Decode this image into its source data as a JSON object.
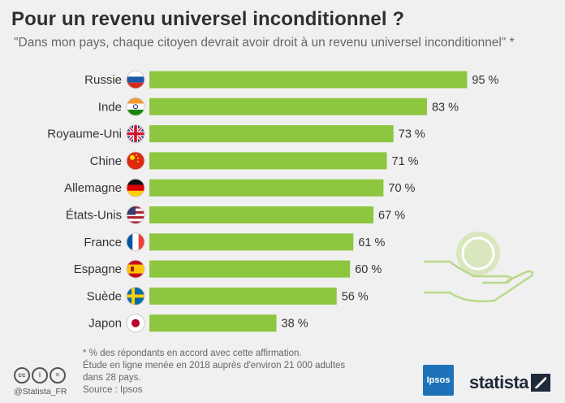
{
  "header": {
    "title": "Pour un revenu universel inconditionnel ?",
    "subtitle": "\"Dans mon pays, chaque citoyen devrait avoir droit à un revenu universel inconditionnel\" *"
  },
  "chart_data": {
    "type": "bar",
    "orientation": "horizontal",
    "categories": [
      "Russie",
      "Inde",
      "Royaume-Uni",
      "Chine",
      "Allemagne",
      "États-Unis",
      "France",
      "Espagne",
      "Suède",
      "Japon"
    ],
    "values": [
      95,
      83,
      73,
      71,
      70,
      67,
      61,
      60,
      56,
      38
    ],
    "value_labels": [
      "95 %",
      "83 %",
      "73 %",
      "71 %",
      "70 %",
      "67 %",
      "61 %",
      "60 %",
      "56 %",
      "38 %"
    ],
    "xlim": [
      0,
      100
    ],
    "grid": false,
    "bar_color": "#8dc63f"
  },
  "flags": [
    {
      "country": "Russie",
      "icon": "russia-flag-icon"
    },
    {
      "country": "Inde",
      "icon": "india-flag-icon"
    },
    {
      "country": "Royaume-Uni",
      "icon": "uk-flag-icon"
    },
    {
      "country": "Chine",
      "icon": "china-flag-icon"
    },
    {
      "country": "Allemagne",
      "icon": "germany-flag-icon"
    },
    {
      "country": "États-Unis",
      "icon": "usa-flag-icon"
    },
    {
      "country": "France",
      "icon": "france-flag-icon"
    },
    {
      "country": "Espagne",
      "icon": "spain-flag-icon"
    },
    {
      "country": "Suède",
      "icon": "sweden-flag-icon"
    },
    {
      "country": "Japon",
      "icon": "japan-flag-icon"
    }
  ],
  "footnote": {
    "line1": "* % des répondants en accord avec cette affirmation.",
    "line2": "Étude en ligne menée en 2018 auprès d'environ 21 000 adultes",
    "line3": "dans 28 pays.",
    "source": "Source : Ipsos"
  },
  "branding": {
    "handle": "@Statista_FR",
    "cc_icons": [
      "cc",
      "i",
      "="
    ],
    "ipsos": "Ipsos",
    "statista": "statista"
  }
}
